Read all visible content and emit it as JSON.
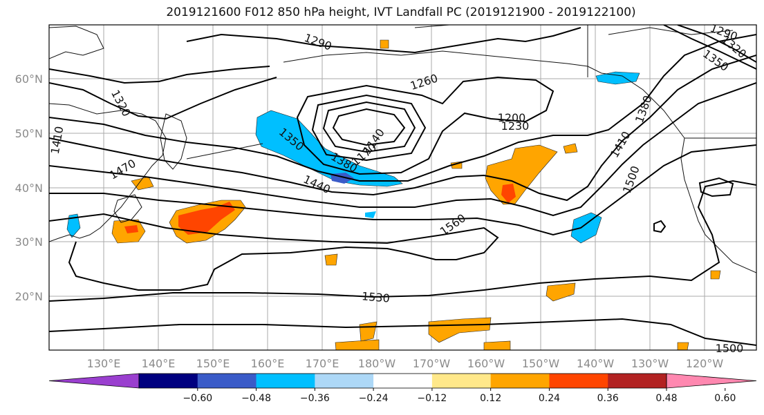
{
  "title": "2019121600 F012 850 hPa height, IVT Landfall PC (2019121900 - 2019122100)",
  "map": {
    "lon_ticks": [
      "130°E",
      "140°E",
      "150°E",
      "160°E",
      "170°E",
      "180°W",
      "170°W",
      "160°W",
      "150°W",
      "140°W",
      "130°W",
      "120°W"
    ],
    "lat_ticks": [
      "60°N",
      "50°N",
      "40°N",
      "30°N",
      "20°N"
    ],
    "contour_labels": [
      "1290",
      "1320",
      "1260",
      "1200",
      "1230",
      "1350",
      "1170",
      "1140",
      "1410",
      "1470",
      "1440",
      "1380",
      "1500",
      "1560",
      "1530",
      "1290",
      "1320",
      "1350",
      "1410",
      "1380",
      "1500"
    ]
  },
  "colorbar": {
    "ticks": [
      "−0.60",
      "−0.48",
      "−0.36",
      "−0.24",
      "−0.12",
      "0.12",
      "0.24",
      "0.36",
      "0.48",
      "0.60"
    ],
    "colors": [
      "#9a3fcf",
      "#00007f",
      "#3a5bc8",
      "#00bfff",
      "#add8f7",
      "#ffffff",
      "#ffe88a",
      "#ffa500",
      "#ff4500",
      "#b22222",
      "#ff88b0"
    ]
  }
}
